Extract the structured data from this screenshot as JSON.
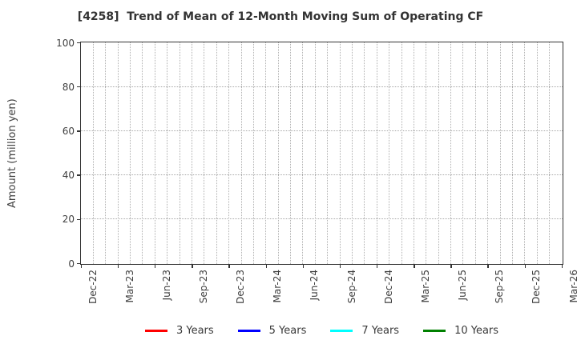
{
  "chart_data": {
    "type": "line",
    "title": "[4258]  Trend of Mean of 12-Month Moving Sum of Operating CF",
    "xlabel": "",
    "ylabel": "Amount (million yen)",
    "ylim": [
      0,
      100
    ],
    "yticks": [
      0,
      20,
      40,
      60,
      80,
      100
    ],
    "x_tick_labels": [
      "Dec-22",
      "Mar-23",
      "Jun-23",
      "Sep-23",
      "Dec-23",
      "Mar-24",
      "Jun-24",
      "Sep-24",
      "Dec-24",
      "Mar-25",
      "Jun-25",
      "Sep-25",
      "Dec-25",
      "Mar-26"
    ],
    "x_months_total": 39,
    "x_label_step_months": 3,
    "grid": {
      "vertical": "monthly",
      "horizontal": "every 20 units",
      "style": "dotted",
      "on": true
    },
    "legend_position": "bottom-center",
    "series": [
      {
        "name": "3 Years",
        "color": "#ff0000",
        "values": []
      },
      {
        "name": "5 Years",
        "color": "#0000ff",
        "values": []
      },
      {
        "name": "7 Years",
        "color": "#00ffff",
        "values": []
      },
      {
        "name": "10 Years",
        "color": "#008000",
        "values": []
      }
    ]
  }
}
